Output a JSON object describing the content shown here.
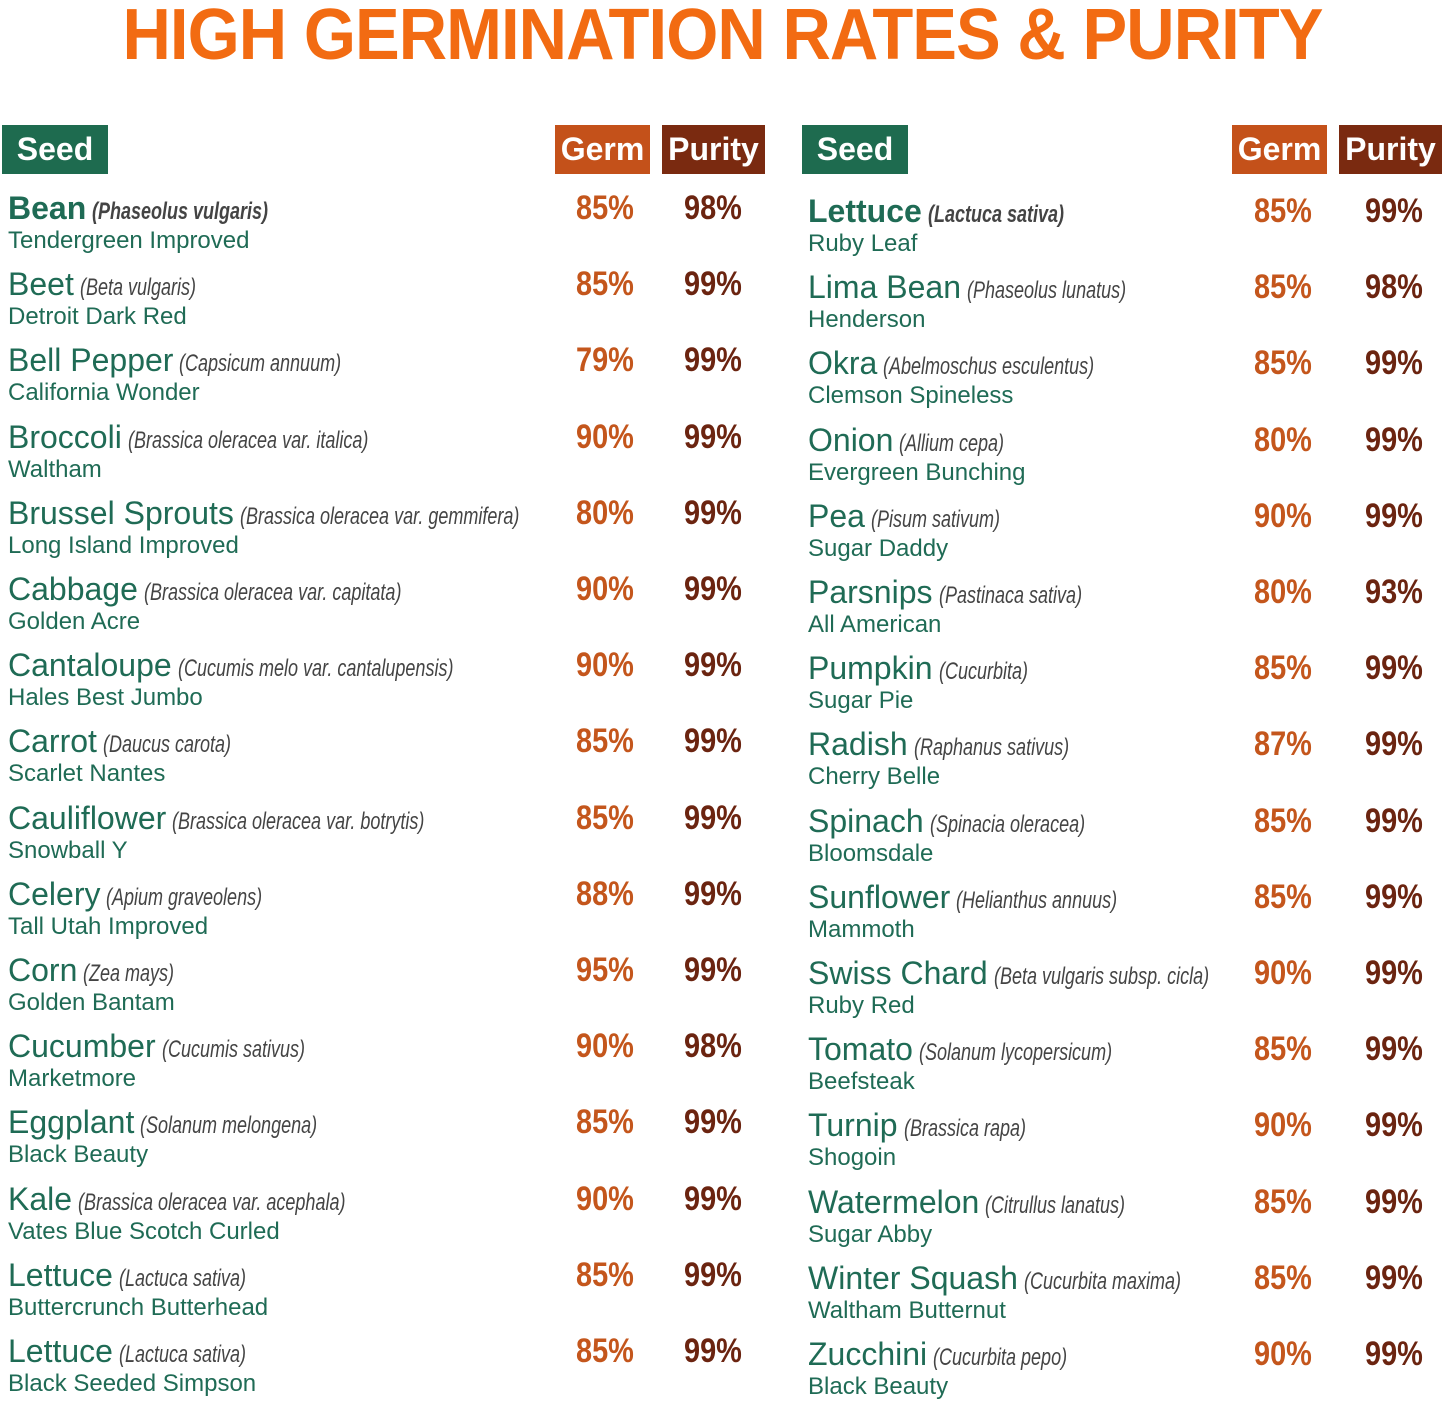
{
  "title": "HIGH GERMINATION RATES & PURITY",
  "tables": [
    {
      "headers": [
        "Seed",
        "Germ",
        "Purity"
      ],
      "rows": [
        {
          "name": "Bean",
          "latin": "(Phaseolus vulgaris)",
          "variety": "Tendergreen Improved",
          "germ": "85%",
          "purity": "98%"
        },
        {
          "name": "Beet",
          "latin": "(Beta vulgaris)",
          "variety": "Detroit Dark Red",
          "germ": "85%",
          "purity": "99%"
        },
        {
          "name": "Bell Pepper",
          "latin": "(Capsicum annuum)",
          "variety": "California Wonder",
          "germ": "79%",
          "purity": "99%"
        },
        {
          "name": "Broccoli",
          "latin": "(Brassica oleracea var. italica)",
          "variety": "Waltham",
          "germ": "90%",
          "purity": "99%"
        },
        {
          "name": "Brussel Sprouts",
          "latin": "(Brassica oleracea var. gemmifera)",
          "variety": "Long Island Improved",
          "germ": "80%",
          "purity": "99%"
        },
        {
          "name": "Cabbage",
          "latin": "(Brassica oleracea var. capitata)",
          "variety": "Golden Acre",
          "germ": "90%",
          "purity": "99%"
        },
        {
          "name": "Cantaloupe",
          "latin": "(Cucumis melo var. cantalupensis)",
          "variety": "Hales Best Jumbo",
          "germ": "90%",
          "purity": "99%"
        },
        {
          "name": "Carrot",
          "latin": "(Daucus carota)",
          "variety": "Scarlet Nantes",
          "germ": "85%",
          "purity": "99%"
        },
        {
          "name": "Cauliflower",
          "latin": "(Brassica oleracea var. botrytis)",
          "variety": "Snowball Y",
          "germ": "85%",
          "purity": "99%"
        },
        {
          "name": "Celery",
          "latin": "(Apium graveolens)",
          "variety": "Tall Utah Improved",
          "germ": "88%",
          "purity": "99%"
        },
        {
          "name": "Corn",
          "latin": "(Zea mays)",
          "variety": "Golden Bantam",
          "germ": "95%",
          "purity": "99%"
        },
        {
          "name": "Cucumber",
          "latin": "(Cucumis sativus)",
          "variety": "Marketmore",
          "germ": "90%",
          "purity": "98%"
        },
        {
          "name": "Eggplant",
          "latin": "(Solanum melongena)",
          "variety": "Black Beauty",
          "germ": "85%",
          "purity": "99%"
        },
        {
          "name": "Kale",
          "latin": "(Brassica oleracea var. acephala)",
          "variety": "Vates Blue Scotch Curled",
          "germ": "90%",
          "purity": "99%"
        },
        {
          "name": "Lettuce",
          "latin": "(Lactuca sativa)",
          "variety": "Buttercrunch Butterhead",
          "germ": "85%",
          "purity": "99%"
        },
        {
          "name": "Lettuce",
          "latin": "(Lactuca sativa)",
          "variety": "Black Seeded Simpson",
          "germ": "85%",
          "purity": "99%"
        }
      ]
    },
    {
      "headers": [
        "Seed",
        "Germ",
        "Purity"
      ],
      "rows": [
        {
          "name": "Lettuce",
          "latin": "(Lactuca sativa)",
          "variety": "Ruby Leaf",
          "germ": "85%",
          "purity": "99%"
        },
        {
          "name": "Lima Bean",
          "latin": "(Phaseolus lunatus)",
          "variety": "Henderson",
          "germ": "85%",
          "purity": "98%"
        },
        {
          "name": "Okra",
          "latin": "(Abelmoschus esculentus)",
          "variety": "Clemson Spineless",
          "germ": "85%",
          "purity": "99%"
        },
        {
          "name": "Onion",
          "latin": "(Allium cepa)",
          "variety": "Evergreen Bunching",
          "germ": "80%",
          "purity": "99%"
        },
        {
          "name": "Pea",
          "latin": "(Pisum sativum)",
          "variety": "Sugar Daddy",
          "germ": "90%",
          "purity": "99%"
        },
        {
          "name": "Parsnips",
          "latin": "(Pastinaca sativa)",
          "variety": "All American",
          "germ": "80%",
          "purity": "93%"
        },
        {
          "name": "Pumpkin",
          "latin": "(Cucurbita)",
          "variety": "Sugar Pie",
          "germ": "85%",
          "purity": "99%"
        },
        {
          "name": "Radish",
          "latin": "(Raphanus sativus)",
          "variety": "Cherry Belle",
          "germ": "87%",
          "purity": "99%"
        },
        {
          "name": "Spinach",
          "latin": "(Spinacia oleracea)",
          "variety": "Bloomsdale",
          "germ": "85%",
          "purity": "99%"
        },
        {
          "name": "Sunflower",
          "latin": "(Helianthus annuus)",
          "variety": "Mammoth",
          "germ": "85%",
          "purity": "99%"
        },
        {
          "name": "Swiss Chard",
          "latin": "(Beta vulgaris subsp. cicla)",
          "variety": "Ruby Red",
          "germ": "90%",
          "purity": "99%"
        },
        {
          "name": "Tomato",
          "latin": "(Solanum lycopersicum)",
          "variety": "Beefsteak",
          "germ": "85%",
          "purity": "99%"
        },
        {
          "name": "Turnip",
          "latin": "(Brassica rapa)",
          "variety": "Shogoin",
          "germ": "90%",
          "purity": "99%"
        },
        {
          "name": "Watermelon",
          "latin": "(Citrullus lanatus)",
          "variety": "Sugar Abby",
          "germ": "85%",
          "purity": "99%"
        },
        {
          "name": "Winter Squash",
          "latin": "(Cucurbita maxima)",
          "variety": "Waltham Butternut",
          "germ": "85%",
          "purity": "99%"
        },
        {
          "name": "Zucchini",
          "latin": "(Cucurbita pepo)",
          "variety": "Black Beauty",
          "germ": "90%",
          "purity": "99%"
        }
      ]
    }
  ]
}
